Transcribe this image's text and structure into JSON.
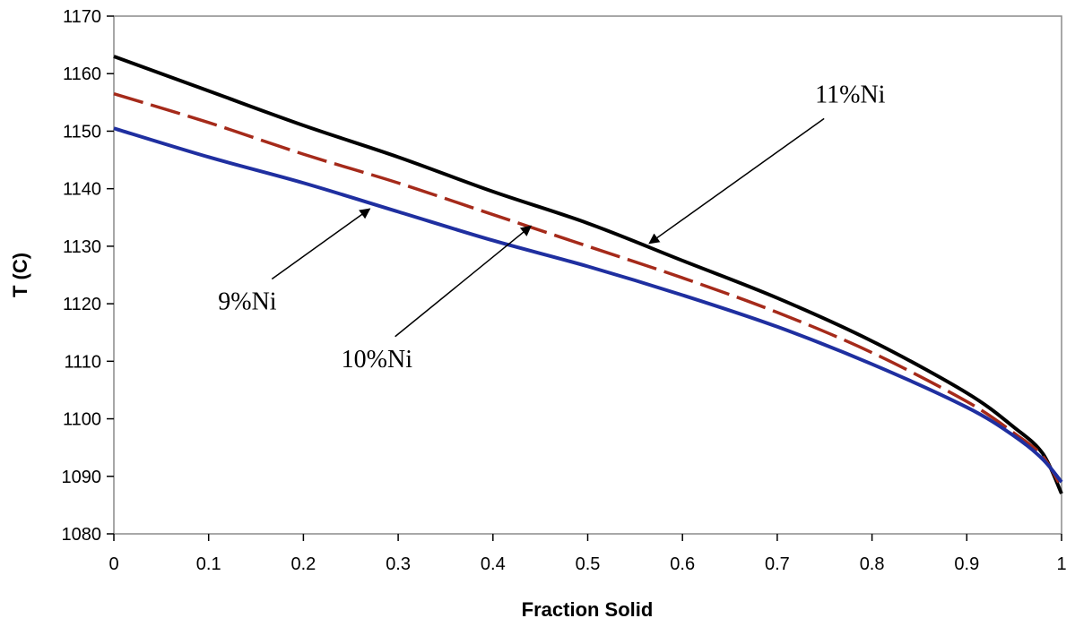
{
  "chart_data": {
    "type": "line",
    "xlabel": "Fraction Solid",
    "ylabel": "T (C)",
    "xlim": [
      0,
      1
    ],
    "ylim": [
      1080,
      1170
    ],
    "x_ticks": [
      "0",
      "0.1",
      "0.2",
      "0.3",
      "0.4",
      "0.5",
      "0.6",
      "0.7",
      "0.8",
      "0.9",
      "1"
    ],
    "y_ticks": [
      "1080",
      "1090",
      "1100",
      "1110",
      "1120",
      "1130",
      "1140",
      "1150",
      "1160",
      "1170"
    ],
    "grid": false,
    "legend": "none",
    "series": [
      {
        "name": "11%Ni",
        "color": "#000000",
        "style": "solid",
        "x": [
          0,
          0.1,
          0.2,
          0.3,
          0.4,
          0.5,
          0.6,
          0.7,
          0.8,
          0.9,
          0.95,
          0.98,
          1.0
        ],
        "values": [
          1163,
          1157,
          1151,
          1145.5,
          1139.5,
          1134,
          1127.5,
          1121,
          1113.5,
          1104.5,
          1098.5,
          1094,
          1087
        ]
      },
      {
        "name": "10%Ni",
        "color": "#a52a1a",
        "style": "dashed",
        "x": [
          0,
          0.1,
          0.2,
          0.3,
          0.4,
          0.5,
          0.6,
          0.7,
          0.8,
          0.9,
          0.95,
          0.98,
          1.0
        ],
        "values": [
          1156.5,
          1151.5,
          1146,
          1141,
          1135.5,
          1130,
          1124.5,
          1118.5,
          1111.5,
          1103,
          1097.5,
          1093.5,
          1088
        ]
      },
      {
        "name": "9%Ni",
        "color": "#1f2fa0",
        "style": "solid",
        "x": [
          0,
          0.1,
          0.2,
          0.3,
          0.4,
          0.5,
          0.6,
          0.7,
          0.8,
          0.9,
          0.95,
          0.98,
          1.0
        ],
        "values": [
          1150.5,
          1145.5,
          1141,
          1136,
          1131,
          1126.5,
          1121.5,
          1116,
          1109.5,
          1102,
          1097,
          1093,
          1089
        ]
      }
    ],
    "annotations": [
      {
        "text": "11%Ni",
        "label_x": 0.74,
        "label_y": 1155,
        "arrow_to_x": 0.565,
        "arrow_to_y": 1130.5
      },
      {
        "text": "9%Ni",
        "label_x": 0.11,
        "label_y": 1119,
        "arrow_to_x": 0.27,
        "arrow_to_y": 1136.5
      },
      {
        "text": "10%Ni",
        "label_x": 0.24,
        "label_y": 1109,
        "arrow_to_x": 0.44,
        "arrow_to_y": 1133.5
      }
    ]
  }
}
